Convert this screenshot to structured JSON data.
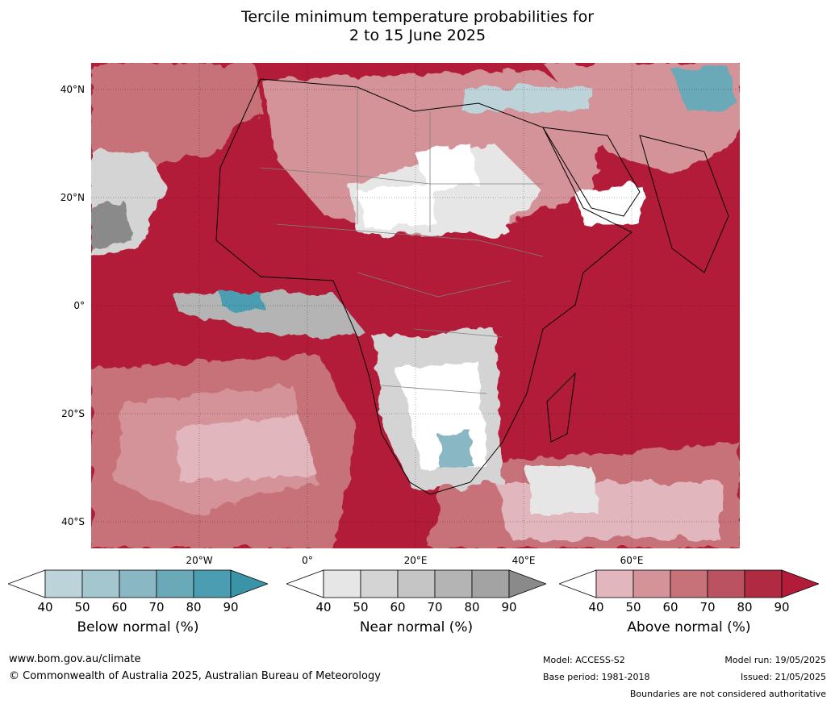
{
  "title_line1": "Tercile minimum temperature probabilities for",
  "title_line2": "2 to 15 June 2025",
  "lat_labels": [
    "40°N",
    "20°N",
    "0°",
    "20°S",
    "40°S"
  ],
  "lon_labels": [
    "20°W",
    "0°",
    "20°E",
    "40°E",
    "60°E"
  ],
  "colorbars": [
    {
      "label": "Below normal (%)",
      "ticks": [
        "40",
        "50",
        "60",
        "70",
        "80",
        "90"
      ],
      "colors": [
        "#ffffff",
        "#bdd3da",
        "#a4c6ce",
        "#89b7c3",
        "#6aaab8",
        "#4b9db1",
        "#3a94a8"
      ]
    },
    {
      "label": "Near normal (%)",
      "ticks": [
        "40",
        "50",
        "60",
        "70",
        "80",
        "90"
      ],
      "colors": [
        "#ffffff",
        "#e6e6e6",
        "#d4d4d4",
        "#c5c5c5",
        "#b4b4b4",
        "#a3a3a3",
        "#8a8a8a"
      ]
    },
    {
      "label": "Above normal (%)",
      "ticks": [
        "40",
        "50",
        "60",
        "70",
        "80",
        "90"
      ],
      "colors": [
        "#ffffff",
        "#e1b6bc",
        "#d49299",
        "#c77178",
        "#bb5261",
        "#b02b42",
        "#b21c38"
      ]
    }
  ],
  "footer": {
    "website": "www.bom.gov.au/climate",
    "copyright": "© Commonwealth of Australia 2025, Australian Bureau of Meteorology",
    "model": "Model: ACCESS-S2",
    "base_period": "Base period: 1981-2018",
    "model_run": "Model run: 19/05/2025",
    "issued": "Issued: 21/05/2025",
    "disclaimer": "Boundaries are not considered authoritative"
  }
}
